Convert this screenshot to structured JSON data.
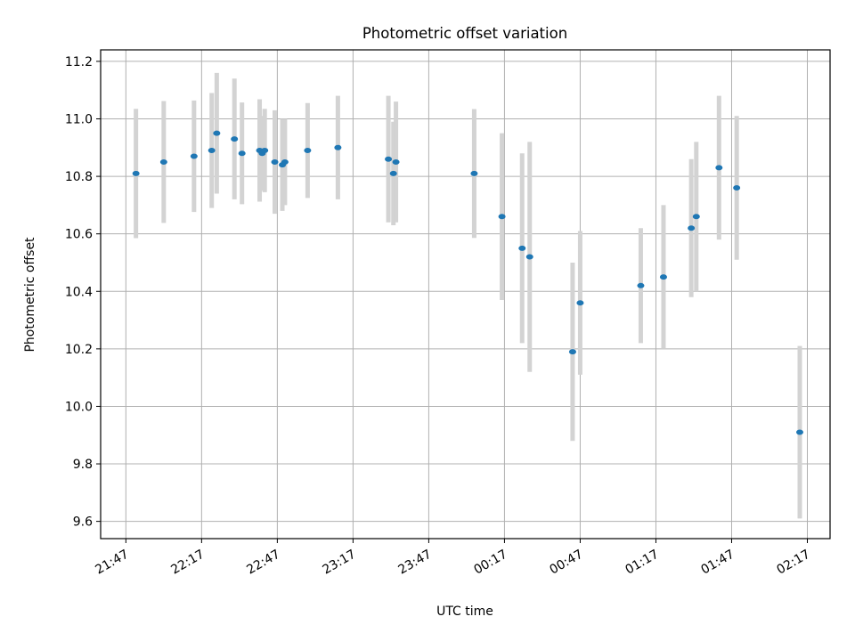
{
  "chart_data": {
    "type": "scatter",
    "title": "Photometric offset variation",
    "xlabel": "UTC time",
    "ylabel": "Photometric offset",
    "x_tick_labels": [
      "21:47",
      "22:17",
      "22:47",
      "23:17",
      "23:47",
      "00:17",
      "00:47",
      "01:17",
      "01:47",
      "02:17"
    ],
    "y_tick_labels": [
      "9.6",
      "9.8",
      "10.0",
      "10.2",
      "10.4",
      "10.6",
      "10.8",
      "11.0",
      "11.2"
    ],
    "xlim": [
      "21:37",
      "02:26"
    ],
    "ylim": [
      9.54,
      11.24
    ],
    "grid": true,
    "x_date_axis": true,
    "series": [
      {
        "marker_color": "#1f77b4",
        "errorbar_color": "#d3d3d3",
        "points": [
          {
            "x": "21:51",
            "y": 10.81,
            "err": 0.225
          },
          {
            "x": "22:02",
            "y": 10.85,
            "err": 0.212
          },
          {
            "x": "22:14",
            "y": 10.87,
            "err": 0.194
          },
          {
            "x": "22:21",
            "y": 10.89,
            "err": 0.2
          },
          {
            "x": "22:23",
            "y": 10.95,
            "err": 0.21
          },
          {
            "x": "22:30",
            "y": 10.93,
            "err": 0.21
          },
          {
            "x": "22:33",
            "y": 10.88,
            "err": 0.177
          },
          {
            "x": "22:40",
            "y": 10.89,
            "err": 0.178
          },
          {
            "x": "22:41",
            "y": 10.88,
            "err": 0.13
          },
          {
            "x": "22:42",
            "y": 10.89,
            "err": 0.145
          },
          {
            "x": "22:46",
            "y": 10.85,
            "err": 0.18
          },
          {
            "x": "22:49",
            "y": 10.84,
            "err": 0.16
          },
          {
            "x": "22:50",
            "y": 10.85,
            "err": 0.15
          },
          {
            "x": "22:59",
            "y": 10.89,
            "err": 0.165
          },
          {
            "x": "23:11",
            "y": 10.9,
            "err": 0.18
          },
          {
            "x": "23:31",
            "y": 10.86,
            "err": 0.22
          },
          {
            "x": "23:33",
            "y": 10.81,
            "err": 0.18
          },
          {
            "x": "23:34",
            "y": 10.85,
            "err": 0.21
          },
          {
            "x": "00:05",
            "y": 10.81,
            "err": 0.224
          },
          {
            "x": "00:16",
            "y": 10.66,
            "err": 0.29
          },
          {
            "x": "00:24",
            "y": 10.55,
            "err": 0.33
          },
          {
            "x": "00:27",
            "y": 10.52,
            "err": 0.4
          },
          {
            "x": "00:44",
            "y": 10.19,
            "err": 0.31
          },
          {
            "x": "00:47",
            "y": 10.36,
            "err": 0.25
          },
          {
            "x": "01:11",
            "y": 10.42,
            "err": 0.2
          },
          {
            "x": "01:20",
            "y": 10.45,
            "err": 0.25
          },
          {
            "x": "01:31",
            "y": 10.62,
            "err": 0.24
          },
          {
            "x": "01:33",
            "y": 10.66,
            "err": 0.26
          },
          {
            "x": "01:42",
            "y": 10.83,
            "err": 0.25
          },
          {
            "x": "01:49",
            "y": 10.76,
            "err": 0.25
          },
          {
            "x": "02:14",
            "y": 9.91,
            "err": 0.3
          }
        ]
      }
    ]
  }
}
